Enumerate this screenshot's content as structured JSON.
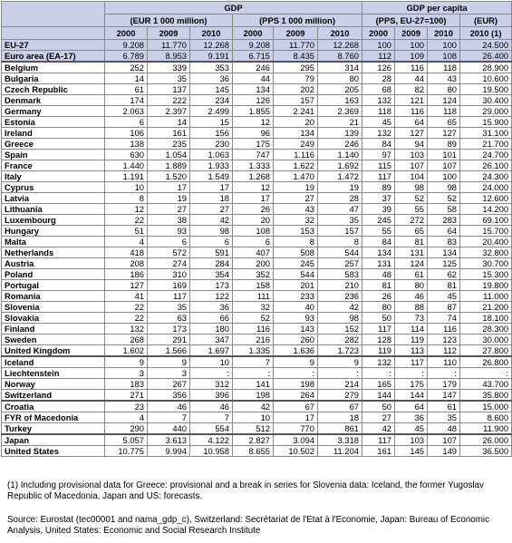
{
  "headers": {
    "gdp": "GDP",
    "gdp_per_capita": "GDP per capita",
    "eur": "(EUR 1 000 million)",
    "pps": "(PPS 1 000 million)",
    "pps_index": "(PPS, EU-27=100)",
    "eur_short": "(EUR)",
    "years": [
      "2000",
      "2009",
      "2010",
      "2000",
      "2009",
      "2010",
      "2000",
      "2009",
      "2010",
      "2010 (1)"
    ]
  },
  "rows": [
    {
      "name": "EU-27",
      "v": [
        "9.208",
        "11.770",
        "12.268",
        "9.208",
        "11.770",
        "12.268",
        "100",
        "100",
        "100",
        "24.500"
      ]
    },
    {
      "name": "Euro area (EA-17)",
      "v": [
        "6.789",
        "8.953",
        "9.191",
        "6.715",
        "8.435",
        "8.760",
        "112",
        "109",
        "108",
        "26.400"
      ]
    },
    {
      "name": "Belgium",
      "v": [
        "252",
        "339",
        "353",
        "246",
        "295",
        "314",
        "126",
        "116",
        "118",
        "28.900"
      ]
    },
    {
      "name": "Bulgaria",
      "v": [
        "14",
        "35",
        "36",
        "44",
        "79",
        "80",
        "28",
        "44",
        "43",
        "10.600"
      ]
    },
    {
      "name": "Czech Republic",
      "v": [
        "61",
        "137",
        "145",
        "134",
        "202",
        "205",
        "68",
        "82",
        "80",
        "19.500"
      ]
    },
    {
      "name": "Denmark",
      "v": [
        "174",
        "222",
        "234",
        "126",
        "157",
        "163",
        "132",
        "121",
        "124",
        "30.400"
      ]
    },
    {
      "name": "Germany",
      "v": [
        "2.063",
        "2.397",
        "2.499",
        "1.855",
        "2.241",
        "2.369",
        "118",
        "116",
        "118",
        "29.000"
      ]
    },
    {
      "name": "Estonia",
      "v": [
        "6",
        "14",
        "15",
        "12",
        "20",
        "21",
        "45",
        "64",
        "65",
        "15.900"
      ]
    },
    {
      "name": "Ireland",
      "v": [
        "106",
        "161",
        "156",
        "96",
        "134",
        "139",
        "132",
        "127",
        "127",
        "31.100"
      ]
    },
    {
      "name": "Greece",
      "v": [
        "138",
        "235",
        "230",
        "175",
        "249",
        "246",
        "84",
        "94",
        "89",
        "21.700"
      ]
    },
    {
      "name": "Spain",
      "v": [
        "630",
        "1.054",
        "1.063",
        "747",
        "1.116",
        "1.140",
        "97",
        "103",
        "101",
        "24.700"
      ]
    },
    {
      "name": "France",
      "v": [
        "1.440",
        "1.889",
        "1.933",
        "1.333",
        "1.622",
        "1.692",
        "115",
        "107",
        "107",
        "26.100"
      ]
    },
    {
      "name": "Italy",
      "v": [
        "1.191",
        "1.520",
        "1.549",
        "1.268",
        "1.470",
        "1.472",
        "117",
        "104",
        "100",
        "24.300"
      ]
    },
    {
      "name": "Cyprus",
      "v": [
        "10",
        "17",
        "17",
        "12",
        "19",
        "19",
        "89",
        "98",
        "98",
        "24.000"
      ]
    },
    {
      "name": "Latvia",
      "v": [
        "8",
        "19",
        "18",
        "17",
        "27",
        "28",
        "37",
        "52",
        "52",
        "12.600"
      ]
    },
    {
      "name": "Lithuania",
      "v": [
        "12",
        "27",
        "27",
        "26",
        "43",
        "47",
        "39",
        "55",
        "58",
        "14.200"
      ]
    },
    {
      "name": "Luxembourg",
      "v": [
        "22",
        "38",
        "42",
        "20",
        "32",
        "35",
        "245",
        "272",
        "283",
        "69.100"
      ]
    },
    {
      "name": "Hungary",
      "v": [
        "51",
        "93",
        "98",
        "108",
        "153",
        "157",
        "55",
        "65",
        "64",
        "15.700"
      ]
    },
    {
      "name": "Malta",
      "v": [
        "4",
        "6",
        "6",
        "6",
        "8",
        "8",
        "84",
        "81",
        "83",
        "20.400"
      ]
    },
    {
      "name": "Netherlands",
      "v": [
        "418",
        "572",
        "591",
        "407",
        "508",
        "544",
        "134",
        "131",
        "134",
        "32.800"
      ]
    },
    {
      "name": "Austria",
      "v": [
        "208",
        "274",
        "284",
        "200",
        "245",
        "257",
        "131",
        "124",
        "125",
        "30.700"
      ]
    },
    {
      "name": "Poland",
      "v": [
        "186",
        "310",
        "354",
        "352",
        "544",
        "583",
        "48",
        "61",
        "62",
        "15.300"
      ]
    },
    {
      "name": "Portugal",
      "v": [
        "127",
        "169",
        "173",
        "158",
        "201",
        "210",
        "81",
        "80",
        "81",
        "19.800"
      ]
    },
    {
      "name": "Romania",
      "v": [
        "41",
        "117",
        "122",
        "111",
        "233",
        "236",
        "26",
        "46",
        "45",
        "11.000"
      ]
    },
    {
      "name": "Slovenia",
      "v": [
        "22",
        "35",
        "36",
        "32",
        "40",
        "42",
        "80",
        "88",
        "87",
        "21.200"
      ]
    },
    {
      "name": "Slovakia",
      "v": [
        "22",
        "63",
        "66",
        "52",
        "93",
        "98",
        "50",
        "73",
        "74",
        "18.100"
      ]
    },
    {
      "name": "Finland",
      "v": [
        "132",
        "173",
        "180",
        "116",
        "143",
        "152",
        "117",
        "114",
        "116",
        "28.300"
      ]
    },
    {
      "name": "Sweden",
      "v": [
        "268",
        "291",
        "347",
        "216",
        "260",
        "282",
        "128",
        "119",
        "123",
        "30.000"
      ]
    },
    {
      "name": "United Kingdom",
      "v": [
        "1.602",
        "1.566",
        "1.697",
        "1.335",
        "1.636",
        "1.723",
        "119",
        "113",
        "112",
        "27.800"
      ]
    },
    {
      "name": "Iceland",
      "v": [
        "9",
        "9",
        "10",
        "7",
        "9",
        "9",
        "132",
        "117",
        "110",
        "26.800"
      ]
    },
    {
      "name": "Liechtenstein",
      "v": [
        "3",
        "3",
        ":",
        ":",
        ":",
        ":",
        ":",
        ":",
        ":",
        ":"
      ]
    },
    {
      "name": "Norway",
      "v": [
        "183",
        "267",
        "312",
        "141",
        "198",
        "214",
        "165",
        "175",
        "179",
        "43.700"
      ]
    },
    {
      "name": "Switzerland",
      "v": [
        "271",
        "356",
        "396",
        "198",
        "264",
        "279",
        "144",
        "144",
        "147",
        "35.800"
      ]
    },
    {
      "name": "Croatia",
      "v": [
        "23",
        "46",
        "46",
        "42",
        "67",
        "67",
        "50",
        "64",
        "61",
        "15.000"
      ]
    },
    {
      "name": "FYR of Macedonia",
      "v": [
        "4",
        "7",
        "7",
        "10",
        "17",
        "18",
        "27",
        "36",
        "35",
        "8.600"
      ]
    },
    {
      "name": "Turkey",
      "v": [
        "290",
        "440",
        "554",
        "512",
        "770",
        "861",
        "42",
        "45",
        "48",
        "11.900"
      ]
    },
    {
      "name": "Japan",
      "v": [
        "5.057",
        "3.613",
        "4.122",
        "2.827",
        "3.094",
        "3.318",
        "117",
        "103",
        "107",
        "26.000"
      ]
    },
    {
      "name": "United States",
      "v": [
        "10.775",
        "9.994",
        "10.958",
        "8.655",
        "10.502",
        "11.204",
        "161",
        "145",
        "149",
        "36.500"
      ]
    }
  ],
  "note1": "(1) Including provisional data for Greece: provisional and a break in series for Slovenia data: Iceland, the former Yugoslav Republic of Macedonia, Japan and US: forecasts.",
  "source": "Source: Eurostat (tec00001 and nama_gdp_c), Switzerland: Secrétariat de l'Etat à l'Economie, Japan: Bureau of Economic Analysis, United States: Economic and Social Research Institute"
}
